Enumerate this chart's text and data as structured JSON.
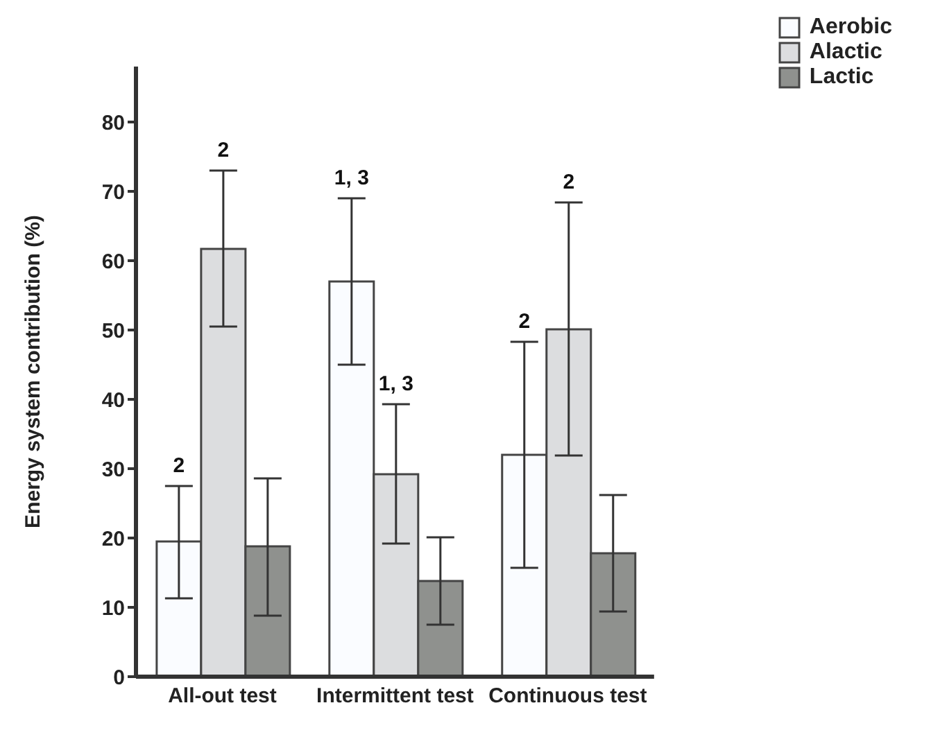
{
  "chart_data": {
    "type": "bar",
    "ylabel": "Energy system contribution (%)",
    "categories": [
      "All-out test",
      "Intermittent test",
      "Continuous test"
    ],
    "series": [
      {
        "name": "Aerobic",
        "color": "#fafcff",
        "values": [
          19.5,
          57,
          32
        ],
        "errors": [
          [
            11.3,
            27.5
          ],
          [
            45,
            69
          ],
          [
            15.7,
            48.3
          ]
        ]
      },
      {
        "name": "Alactic",
        "color": "#dcdddf",
        "values": [
          61.7,
          29.2,
          50.1
        ],
        "errors": [
          [
            50.5,
            73
          ],
          [
            19.2,
            39.3
          ],
          [
            31.9,
            68.4
          ]
        ]
      },
      {
        "name": "Lactic",
        "color": "#8f918e",
        "values": [
          18.8,
          13.8,
          17.8
        ],
        "errors": [
          [
            8.8,
            28.6
          ],
          [
            7.5,
            20.1
          ],
          [
            9.4,
            26.2
          ]
        ]
      }
    ],
    "annotations": [
      "2",
      "2",
      "1, 3",
      "1, 3",
      "2",
      "2"
    ],
    "ylim": [
      0,
      88
    ],
    "yticks": [
      0,
      10,
      20,
      30,
      40,
      50,
      60,
      70,
      80
    ],
    "grid": false,
    "legend": "top right"
  }
}
